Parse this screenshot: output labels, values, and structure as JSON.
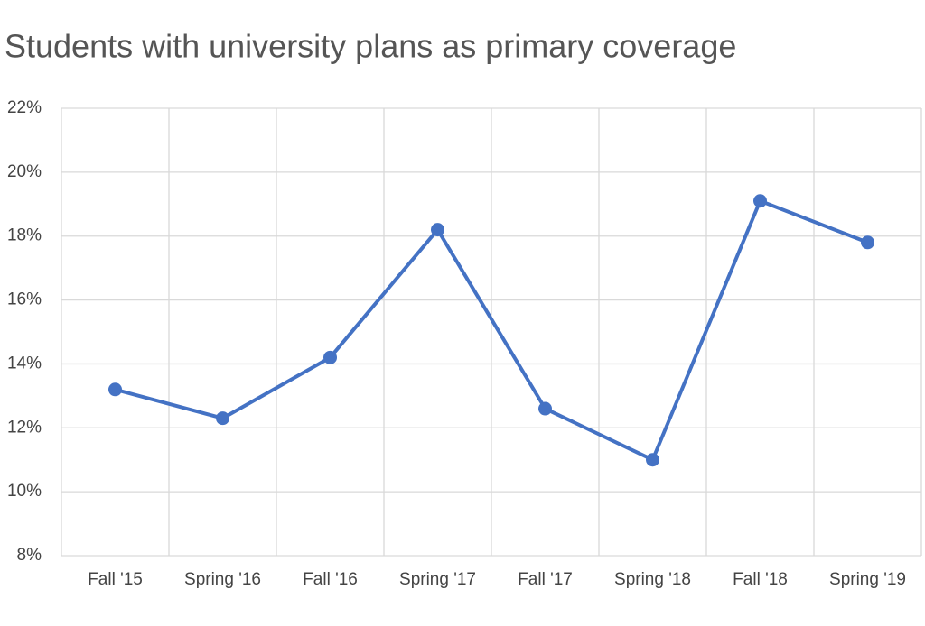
{
  "chart_data": {
    "type": "line",
    "title": "Students with university plans as primary coverage",
    "categories": [
      "Fall '15",
      "Spring '16",
      "Fall '16",
      "Spring '17",
      "Fall '17",
      "Spring '18",
      "Fall '18",
      "Spring '19"
    ],
    "values": [
      13.2,
      12.3,
      14.2,
      18.2,
      12.6,
      11.0,
      19.1,
      17.8
    ],
    "color": "#4472c4",
    "ylim": [
      8,
      22
    ],
    "yticks": [
      {
        "value": 8,
        "label": "8%"
      },
      {
        "value": 10,
        "label": "10%"
      },
      {
        "value": 12,
        "label": "12%"
      },
      {
        "value": 14,
        "label": "14%"
      },
      {
        "value": 16,
        "label": "16%"
      },
      {
        "value": 18,
        "label": "18%"
      },
      {
        "value": 20,
        "label": "20%"
      },
      {
        "value": 22,
        "label": "22%"
      }
    ],
    "grid": true
  }
}
